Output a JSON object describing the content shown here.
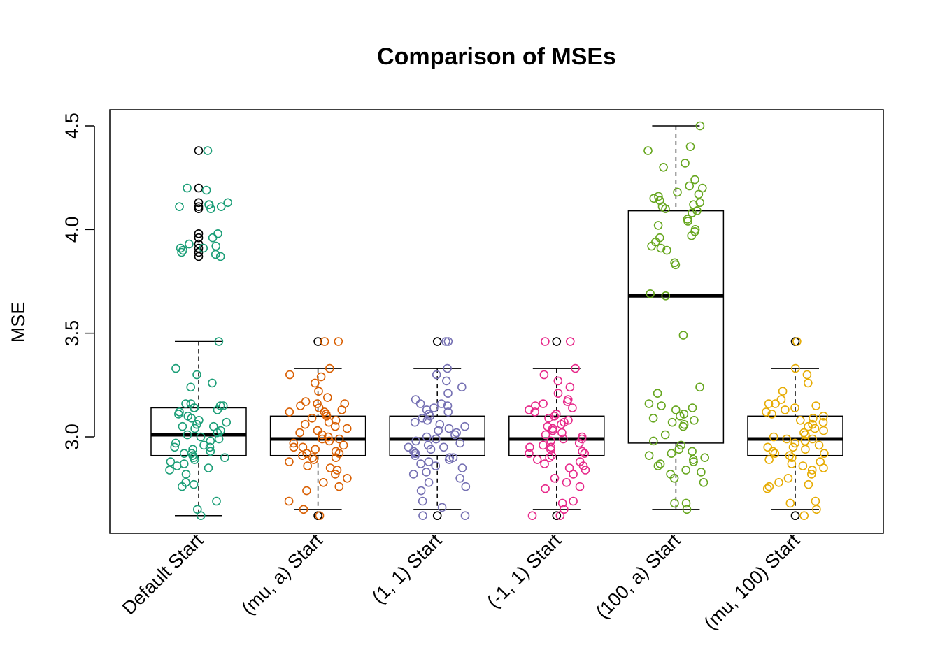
{
  "chart_data": {
    "type": "boxplot",
    "title": "Comparison of MSEs",
    "xlabel": "",
    "ylabel": "MSE",
    "ylim": [
      2.6,
      4.55
    ],
    "yticks": [
      3.0,
      3.5,
      4.0,
      4.5
    ],
    "ytick_labels": [
      "3.0",
      "3.5",
      "4.0",
      "4.5"
    ],
    "grid": false,
    "legend": "none",
    "outlier_color": "#000000",
    "categories": [
      "Default Start",
      "(mu, a) Start",
      "(1, 1) Start",
      "(-1, 1) Start",
      "(100, a) Start",
      "(mu, 100) Start"
    ],
    "series": [
      {
        "color": "#1b9e77",
        "box": {
          "whisker_low": 2.62,
          "q1": 2.91,
          "median": 3.01,
          "q3": 3.14,
          "whisker_high": 3.46
        },
        "outliers": [
          4.38,
          4.2,
          4.13,
          4.11,
          4.1,
          3.98,
          3.96,
          3.93,
          3.91,
          3.89,
          3.87
        ],
        "points": [
          4.38,
          4.2,
          4.19,
          4.13,
          4.12,
          4.12,
          4.11,
          4.11,
          4.1,
          3.98,
          3.96,
          3.93,
          3.92,
          3.91,
          3.91,
          3.9,
          3.89,
          3.88,
          3.87,
          3.46,
          3.33,
          3.3,
          3.26,
          3.24,
          3.16,
          3.16,
          3.15,
          3.15,
          3.14,
          3.14,
          3.13,
          3.12,
          3.11,
          3.1,
          3.09,
          3.08,
          3.07,
          3.06,
          3.05,
          3.05,
          3.04,
          3.03,
          3.02,
          3.01,
          3.0,
          2.99,
          2.98,
          2.97,
          2.96,
          2.95,
          2.95,
          2.94,
          2.93,
          2.92,
          2.92,
          2.91,
          2.9,
          2.9,
          2.89,
          2.88,
          2.87,
          2.86,
          2.85,
          2.84,
          2.82,
          2.78,
          2.77,
          2.76,
          2.69,
          2.65,
          2.62
        ]
      },
      {
        "color": "#d95f02",
        "box": {
          "whisker_low": 2.65,
          "q1": 2.91,
          "median": 2.99,
          "q3": 3.1,
          "whisker_high": 3.33
        },
        "outliers": [
          3.46,
          2.62
        ],
        "points": [
          3.46,
          3.46,
          3.33,
          3.3,
          3.29,
          3.26,
          3.22,
          3.19,
          3.17,
          3.16,
          3.16,
          3.15,
          3.14,
          3.13,
          3.12,
          3.12,
          3.11,
          3.1,
          3.09,
          3.08,
          3.07,
          3.06,
          3.05,
          3.04,
          3.03,
          3.02,
          3.01,
          3.0,
          2.99,
          2.99,
          2.98,
          2.97,
          2.96,
          2.95,
          2.95,
          2.94,
          2.93,
          2.92,
          2.92,
          2.91,
          2.9,
          2.9,
          2.89,
          2.88,
          2.86,
          2.85,
          2.84,
          2.82,
          2.8,
          2.78,
          2.76,
          2.74,
          2.69,
          2.65,
          2.62
        ]
      },
      {
        "color": "#7570b3",
        "box": {
          "whisker_low": 2.65,
          "q1": 2.91,
          "median": 2.99,
          "q3": 3.1,
          "whisker_high": 3.33
        },
        "outliers": [
          3.46,
          2.62
        ],
        "points": [
          3.46,
          3.46,
          3.33,
          3.3,
          3.27,
          3.24,
          3.21,
          3.18,
          3.16,
          3.16,
          3.15,
          3.14,
          3.13,
          3.12,
          3.11,
          3.1,
          3.09,
          3.08,
          3.07,
          3.06,
          3.05,
          3.04,
          3.03,
          3.02,
          3.01,
          3.0,
          2.99,
          2.99,
          2.98,
          2.97,
          2.96,
          2.95,
          2.95,
          2.94,
          2.93,
          2.92,
          2.92,
          2.91,
          2.9,
          2.9,
          2.89,
          2.88,
          2.87,
          2.86,
          2.85,
          2.83,
          2.82,
          2.8,
          2.78,
          2.76,
          2.74,
          2.69,
          2.66,
          2.62,
          2.62
        ]
      },
      {
        "color": "#e7298a",
        "box": {
          "whisker_low": 2.65,
          "q1": 2.91,
          "median": 2.99,
          "q3": 3.1,
          "whisker_high": 3.33
        },
        "outliers": [
          3.46,
          2.62
        ],
        "points": [
          3.46,
          3.46,
          3.33,
          3.3,
          3.27,
          3.24,
          3.21,
          3.18,
          3.17,
          3.16,
          3.15,
          3.14,
          3.13,
          3.12,
          3.11,
          3.1,
          3.09,
          3.08,
          3.07,
          3.06,
          3.05,
          3.04,
          3.03,
          3.02,
          3.01,
          3.0,
          2.99,
          2.99,
          2.98,
          2.97,
          2.96,
          2.95,
          2.95,
          2.94,
          2.93,
          2.92,
          2.92,
          2.91,
          2.9,
          2.89,
          2.88,
          2.87,
          2.86,
          2.85,
          2.84,
          2.82,
          2.8,
          2.78,
          2.76,
          2.75,
          2.69,
          2.68,
          2.65,
          2.62,
          2.62
        ]
      },
      {
        "color": "#66a61e",
        "box": {
          "whisker_low": 2.65,
          "q1": 2.97,
          "median": 3.68,
          "q3": 4.09,
          "whisker_high": 4.5
        },
        "outliers": [],
        "points": [
          4.5,
          4.4,
          4.38,
          4.32,
          4.3,
          4.24,
          4.21,
          4.2,
          4.18,
          4.17,
          4.16,
          4.15,
          4.14,
          4.13,
          4.12,
          4.11,
          4.1,
          4.09,
          4.08,
          4.05,
          4.04,
          4.02,
          4.0,
          3.99,
          3.97,
          3.96,
          3.94,
          3.92,
          3.91,
          3.9,
          3.84,
          3.83,
          3.69,
          3.68,
          3.49,
          3.24,
          3.21,
          3.16,
          3.15,
          3.14,
          3.13,
          3.11,
          3.1,
          3.09,
          3.08,
          3.07,
          3.06,
          3.05,
          3.01,
          2.98,
          2.96,
          2.94,
          2.93,
          2.92,
          2.91,
          2.9,
          2.89,
          2.88,
          2.87,
          2.86,
          2.84,
          2.83,
          2.82,
          2.8,
          2.78,
          2.68,
          2.68,
          2.65
        ]
      },
      {
        "color": "#e6ab02",
        "box": {
          "whisker_low": 2.65,
          "q1": 2.91,
          "median": 2.99,
          "q3": 3.1,
          "whisker_high": 3.33
        },
        "outliers": [
          3.46,
          2.62
        ],
        "points": [
          3.46,
          3.33,
          3.3,
          3.26,
          3.22,
          3.18,
          3.16,
          3.16,
          3.15,
          3.14,
          3.13,
          3.12,
          3.11,
          3.1,
          3.09,
          3.08,
          3.07,
          3.06,
          3.05,
          3.04,
          3.03,
          3.02,
          3.01,
          3.0,
          2.99,
          2.99,
          2.98,
          2.97,
          2.96,
          2.95,
          2.95,
          2.94,
          2.93,
          2.92,
          2.92,
          2.91,
          2.9,
          2.89,
          2.88,
          2.87,
          2.86,
          2.85,
          2.84,
          2.82,
          2.8,
          2.78,
          2.77,
          2.76,
          2.75,
          2.69,
          2.68,
          2.65,
          2.62
        ]
      }
    ]
  }
}
